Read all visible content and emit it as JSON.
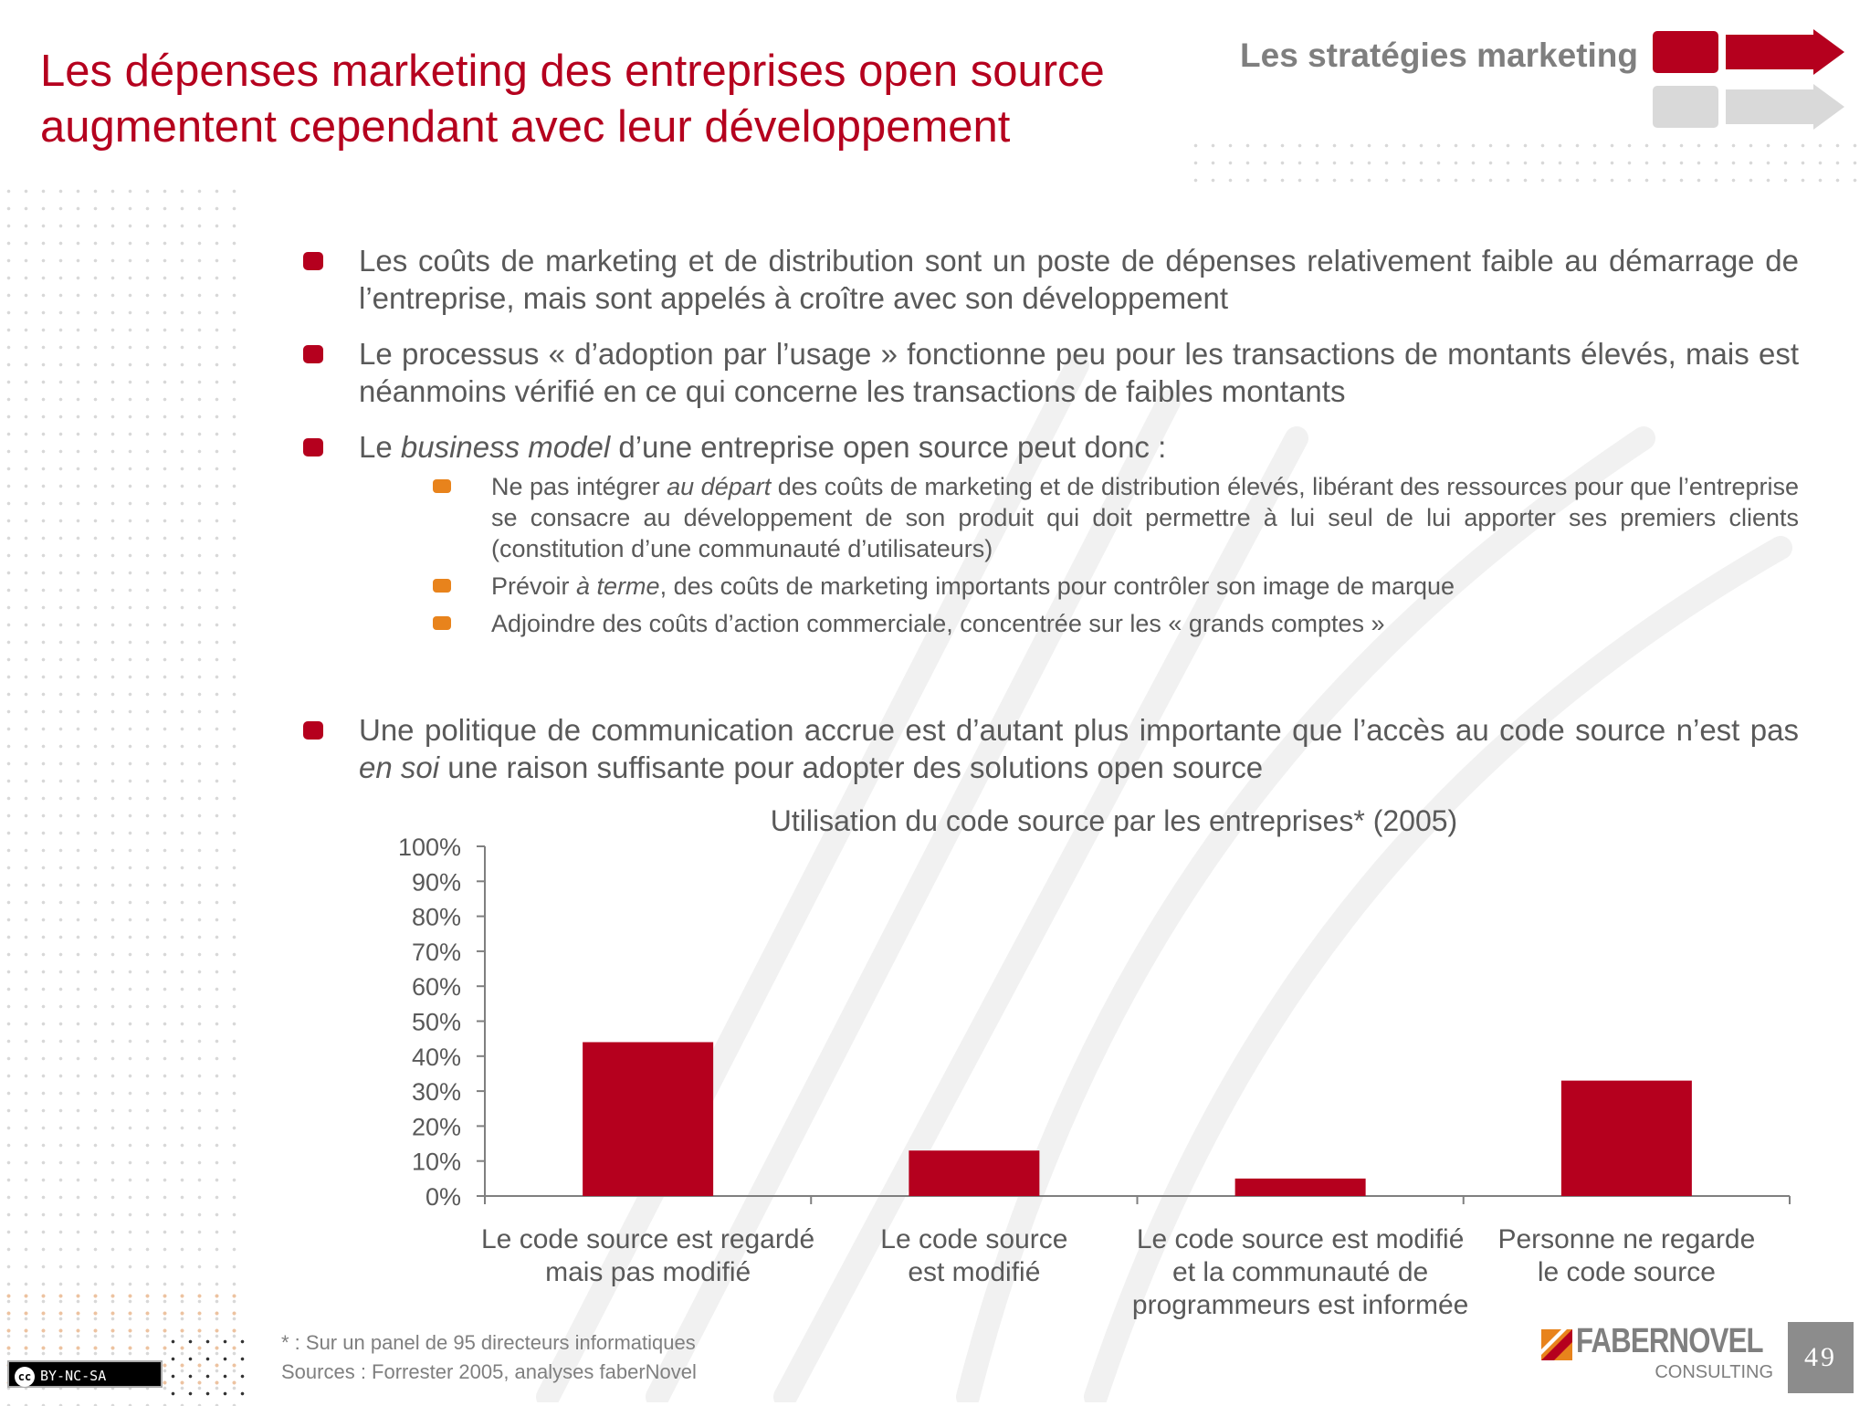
{
  "header": {
    "title": "Les dépenses marketing des entreprises open source augmentent cependant avec leur développement",
    "section": "Les stratégies marketing"
  },
  "bullets": {
    "p1": "Les coûts de marketing et de distribution sont un poste de dépenses relativement faible au démarrage de l’entreprise, mais sont appelés à croître avec son développement",
    "p2": "Le processus « d’adoption par l’usage » fonctionne peu pour les transactions de montants élevés, mais est néanmoins vérifié en ce qui concerne les transactions de faibles montants",
    "p3_a": "Le ",
    "p3_em": "business model",
    "p3_b": " d’une entreprise open source peut donc :",
    "s1_a": "Ne pas intégrer ",
    "s1_em": "au départ",
    "s1_b": " des coûts de marketing et de distribution élevés, libérant des ressources pour que l’entreprise se consacre au développement de son produit qui doit permettre à lui seul de lui apporter ses premiers clients (constitution d’une communauté d’utilisateurs)",
    "s2_a": "Prévoir ",
    "s2_em": "à terme",
    "s2_b": ", des coûts de marketing importants pour contrôler son image de marque",
    "s3": "Adjoindre des coûts d’action commerciale, concentrée sur les « grands comptes »",
    "p4_a": "Une politique de communication accrue est d’autant plus importante que l’accès au code source n’est pas ",
    "p4_em": "en soi",
    "p4_b": " une raison suffisante pour adopter des solutions open source"
  },
  "chart_data": {
    "type": "bar",
    "title": "Utilisation du code source par les entreprises* (2005)",
    "categories": [
      [
        "Le code source est regardé",
        "mais pas modifié"
      ],
      [
        "Le code source",
        "est modifié"
      ],
      [
        "Le code source est modifié",
        "et la communauté de",
        "programmeurs est informée"
      ],
      [
        "Personne ne regarde",
        "le code source"
      ]
    ],
    "values": [
      44,
      13,
      5,
      33
    ],
    "ylim": [
      0,
      100
    ],
    "yticks": [
      "0%",
      "10%",
      "20%",
      "30%",
      "40%",
      "50%",
      "60%",
      "70%",
      "80%",
      "90%",
      "100%"
    ],
    "grid": false,
    "bar_color": "#b5001e"
  },
  "footer": {
    "footnote": "* : Sur un panel de 95 directeurs informatiques",
    "sources": "Sources : Forrester 2005, analyses faberNovel",
    "license": "BY-NC-SA",
    "cc": "cc",
    "logo_name": "FABERNOVEL",
    "logo_sub": "CONSULTING",
    "page_number": "49"
  }
}
